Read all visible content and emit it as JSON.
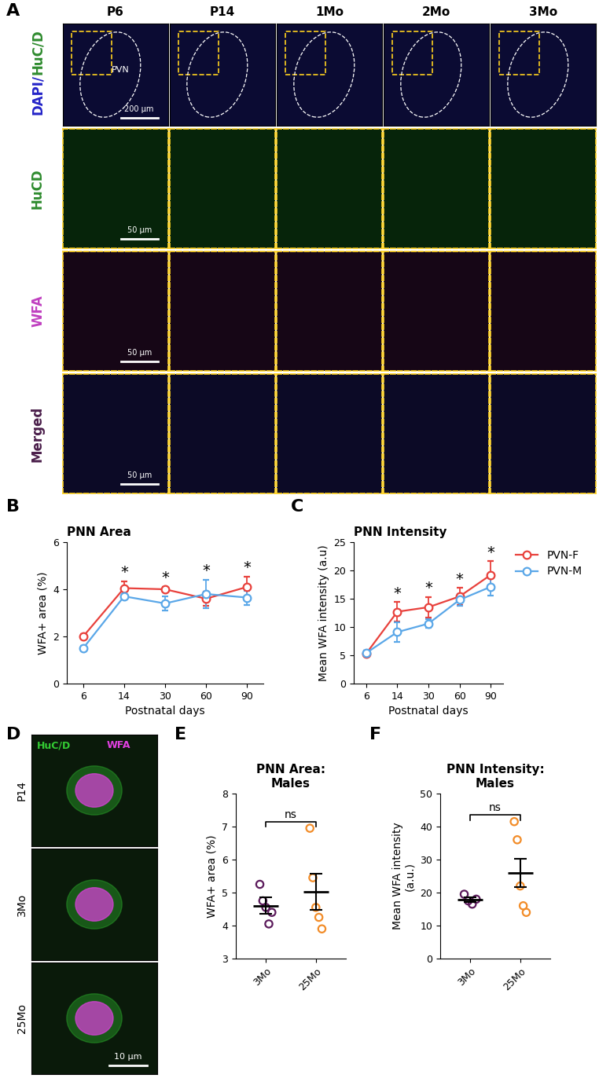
{
  "chart_data": [
    {
      "panel": "B",
      "type": "line",
      "title": "PNN Area",
      "x_label": "Postnatal days",
      "y_label": "WFA+ area (%)",
      "categories": [
        "6",
        "14",
        "30",
        "60",
        "90"
      ],
      "ylim": [
        0,
        6
      ],
      "yticks": [
        0,
        2,
        4,
        6
      ],
      "marker": "o",
      "significance": [
        null,
        "*",
        "*",
        "*",
        "*"
      ],
      "series": [
        {
          "name": "PVN-F",
          "color": "#e8413c",
          "values": [
            2.0,
            4.05,
            4.0,
            3.6,
            4.1
          ],
          "errors": [
            0.1,
            0.3,
            0.1,
            0.3,
            0.45
          ]
        },
        {
          "name": "PVN-M",
          "color": "#5aa7e8",
          "values": [
            1.5,
            3.7,
            3.4,
            3.8,
            3.65
          ],
          "errors": [
            0.1,
            0.1,
            0.3,
            0.6,
            0.3
          ]
        }
      ]
    },
    {
      "panel": "C",
      "type": "line",
      "title": "PNN Intensity",
      "x_label": "Postnatal days",
      "y_label": "Mean WFA intensity (a.u)",
      "categories": [
        "6",
        "14",
        "30",
        "60",
        "90"
      ],
      "ylim": [
        0,
        25
      ],
      "yticks": [
        0,
        5,
        10,
        15,
        20,
        25
      ],
      "marker": "o",
      "legend": "right",
      "significance": [
        null,
        "*",
        "*",
        "*",
        "*"
      ],
      "series": [
        {
          "name": "PVN-F",
          "color": "#e8413c",
          "values": [
            5.3,
            12.7,
            13.5,
            15.4,
            19.2
          ],
          "errors": [
            0.5,
            1.7,
            1.8,
            1.5,
            2.4
          ]
        },
        {
          "name": "PVN-M",
          "color": "#5aa7e8",
          "values": [
            5.4,
            9.1,
            10.6,
            14.8,
            17.1
          ],
          "errors": [
            0.4,
            1.8,
            0.8,
            1.0,
            1.5
          ]
        }
      ]
    },
    {
      "panel": "E",
      "type": "scatter",
      "title": "PNN Area:\nMales",
      "y_label": "WFA+ area (%)",
      "categories": [
        "3Mo",
        "25Mo"
      ],
      "ylim": [
        3,
        8
      ],
      "yticks": [
        3,
        4,
        5,
        6,
        7,
        8
      ],
      "marker": "o",
      "annotation": "ns",
      "groups": [
        {
          "color": "#5b1a5b",
          "values": [
            5.25,
            4.75,
            4.55,
            4.05,
            4.4
          ],
          "mean": 4.6,
          "sem": 0.25
        },
        {
          "color": "#f28c28",
          "values": [
            6.95,
            5.45,
            4.55,
            4.25,
            3.9
          ],
          "mean": 5.02,
          "sem": 0.55
        }
      ]
    },
    {
      "panel": "F",
      "type": "scatter",
      "title": "PNN Intensity:\nMales",
      "y_label": "Mean WFA intensity\n(a.u.)",
      "categories": [
        "3Mo",
        "25Mo"
      ],
      "ylim": [
        0,
        50
      ],
      "yticks": [
        0,
        10,
        20,
        30,
        40,
        50
      ],
      "marker": "o",
      "annotation": "ns",
      "groups": [
        {
          "color": "#5b1a5b",
          "values": [
            19.5,
            17.5,
            16.5,
            18.0
          ],
          "mean": 17.9,
          "sem": 0.65
        },
        {
          "color": "#f28c28",
          "values": [
            41.5,
            36.0,
            22.0,
            16.0,
            14.0
          ],
          "mean": 25.9,
          "sem": 4.3
        }
      ]
    }
  ],
  "figure_panels": {
    "A": {
      "columns": [
        "P6",
        "P14",
        "1Mo",
        "2Mo",
        "3Mo"
      ],
      "rows": [
        {
          "label_parts": [
            {
              "text": "DAPI/",
              "color": "#2323c8"
            },
            {
              "text": "HuC/D",
              "color": "#2e8b2e"
            }
          ],
          "scale_bar": "200 µm",
          "region": "PVN"
        },
        {
          "label_parts": [
            {
              "text": "HuCD",
              "color": "#2e8b2e"
            }
          ],
          "scale_bar": "50 µm"
        },
        {
          "label_parts": [
            {
              "text": "WFA",
              "color": "#c040c0"
            }
          ],
          "scale_bar": "50 µm"
        },
        {
          "label_parts": [
            {
              "text": "Merged",
              "color": "#4b1f4b"
            }
          ],
          "scale_bar": "50 µm"
        }
      ]
    },
    "D": {
      "rows": [
        "P14",
        "3Mo",
        "25Mo"
      ],
      "channels": [
        {
          "text": "HuC/D",
          "color": "#33cc33"
        },
        {
          "text": "WFA",
          "color": "#e040e0"
        }
      ],
      "scale_bar": "10 µm"
    }
  }
}
